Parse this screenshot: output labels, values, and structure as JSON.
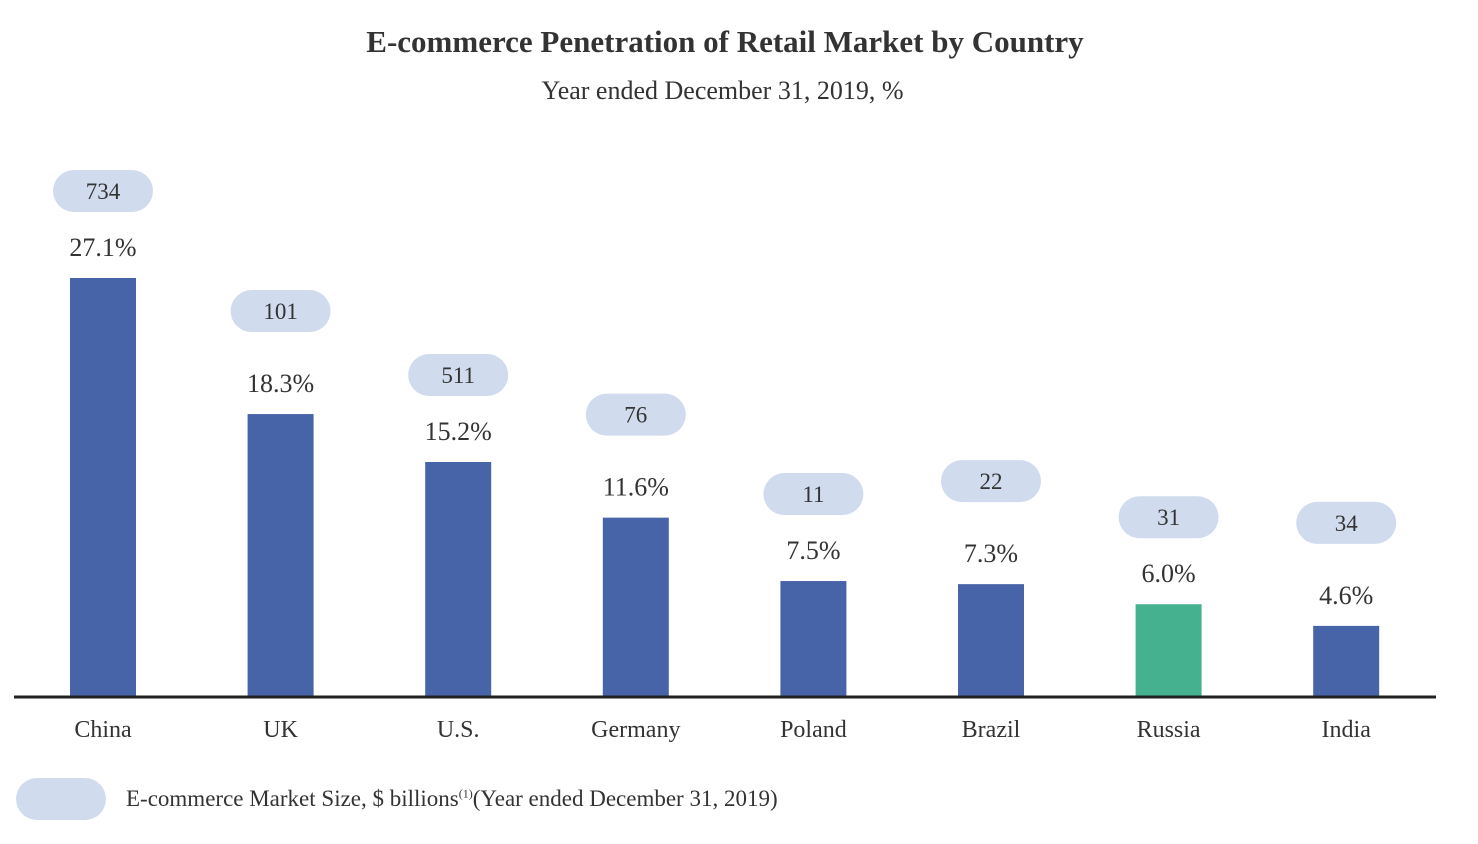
{
  "chart_data": {
    "type": "bar",
    "title": "E-commerce Penetration of Retail Market by Country",
    "subtitle": "Year ended December 31, 2019, %",
    "xlabel": "",
    "ylabel": "",
    "ylim": [
      0,
      27.1
    ],
    "grid": false,
    "categories": [
      "China",
      "UK",
      "U.S.",
      "Germany",
      "Poland",
      "Brazil",
      "Russia",
      "India"
    ],
    "values": [
      27.1,
      18.3,
      15.2,
      11.6,
      7.5,
      7.3,
      6.0,
      4.6
    ],
    "value_labels": [
      "27.1%",
      "18.3%",
      "15.2%",
      "11.6%",
      "7.5%",
      "7.3%",
      "6.0%",
      "4.6%"
    ],
    "market_size": [
      "734",
      "101",
      "511",
      "76",
      "11",
      "22",
      "31",
      "34"
    ],
    "highlight_index": 6,
    "colors": {
      "bar": "#4864a8",
      "highlight": "#45b18f",
      "bubble": "#d0dcee",
      "axis": "#222222"
    },
    "legend": {
      "label": "E-commerce Market Size, $ billions",
      "superscript": "(1)",
      "suffix": "(Year ended December 31, 2019)",
      "placement": "bottom-left"
    }
  }
}
